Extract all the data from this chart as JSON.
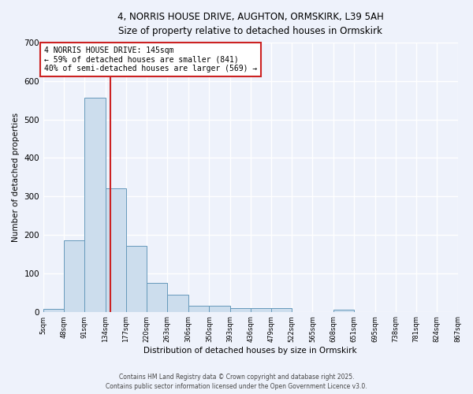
{
  "title1": "4, NORRIS HOUSE DRIVE, AUGHTON, ORMSKIRK, L39 5AH",
  "title2": "Size of property relative to detached houses in Ormskirk",
  "xlabel": "Distribution of detached houses by size in Ormskirk",
  "ylabel": "Number of detached properties",
  "bar_color": "#ccdded",
  "bar_edge_color": "#6699bb",
  "vline_color": "#cc2222",
  "vline_x": 145,
  "annotation_text": "4 NORRIS HOUSE DRIVE: 145sqm\n← 59% of detached houses are smaller (841)\n40% of semi-detached houses are larger (569) →",
  "annotation_box_color": "#ffffff",
  "annotation_box_edge": "#cc2222",
  "bins": [
    5,
    48,
    91,
    134,
    177,
    220,
    263,
    306,
    350,
    393,
    436,
    479,
    522,
    565,
    608,
    651,
    695,
    738,
    781,
    824,
    867
  ],
  "counts": [
    8,
    186,
    557,
    322,
    171,
    75,
    44,
    16,
    16,
    10,
    10,
    10,
    0,
    0,
    5,
    0,
    0,
    0,
    0,
    0
  ],
  "ylim": [
    0,
    700
  ],
  "yticks": [
    0,
    100,
    200,
    300,
    400,
    500,
    600,
    700
  ],
  "footer1": "Contains HM Land Registry data © Crown copyright and database right 2025.",
  "footer2": "Contains public sector information licensed under the Open Government Licence v3.0.",
  "background_color": "#eef2fb",
  "grid_color": "#ffffff"
}
